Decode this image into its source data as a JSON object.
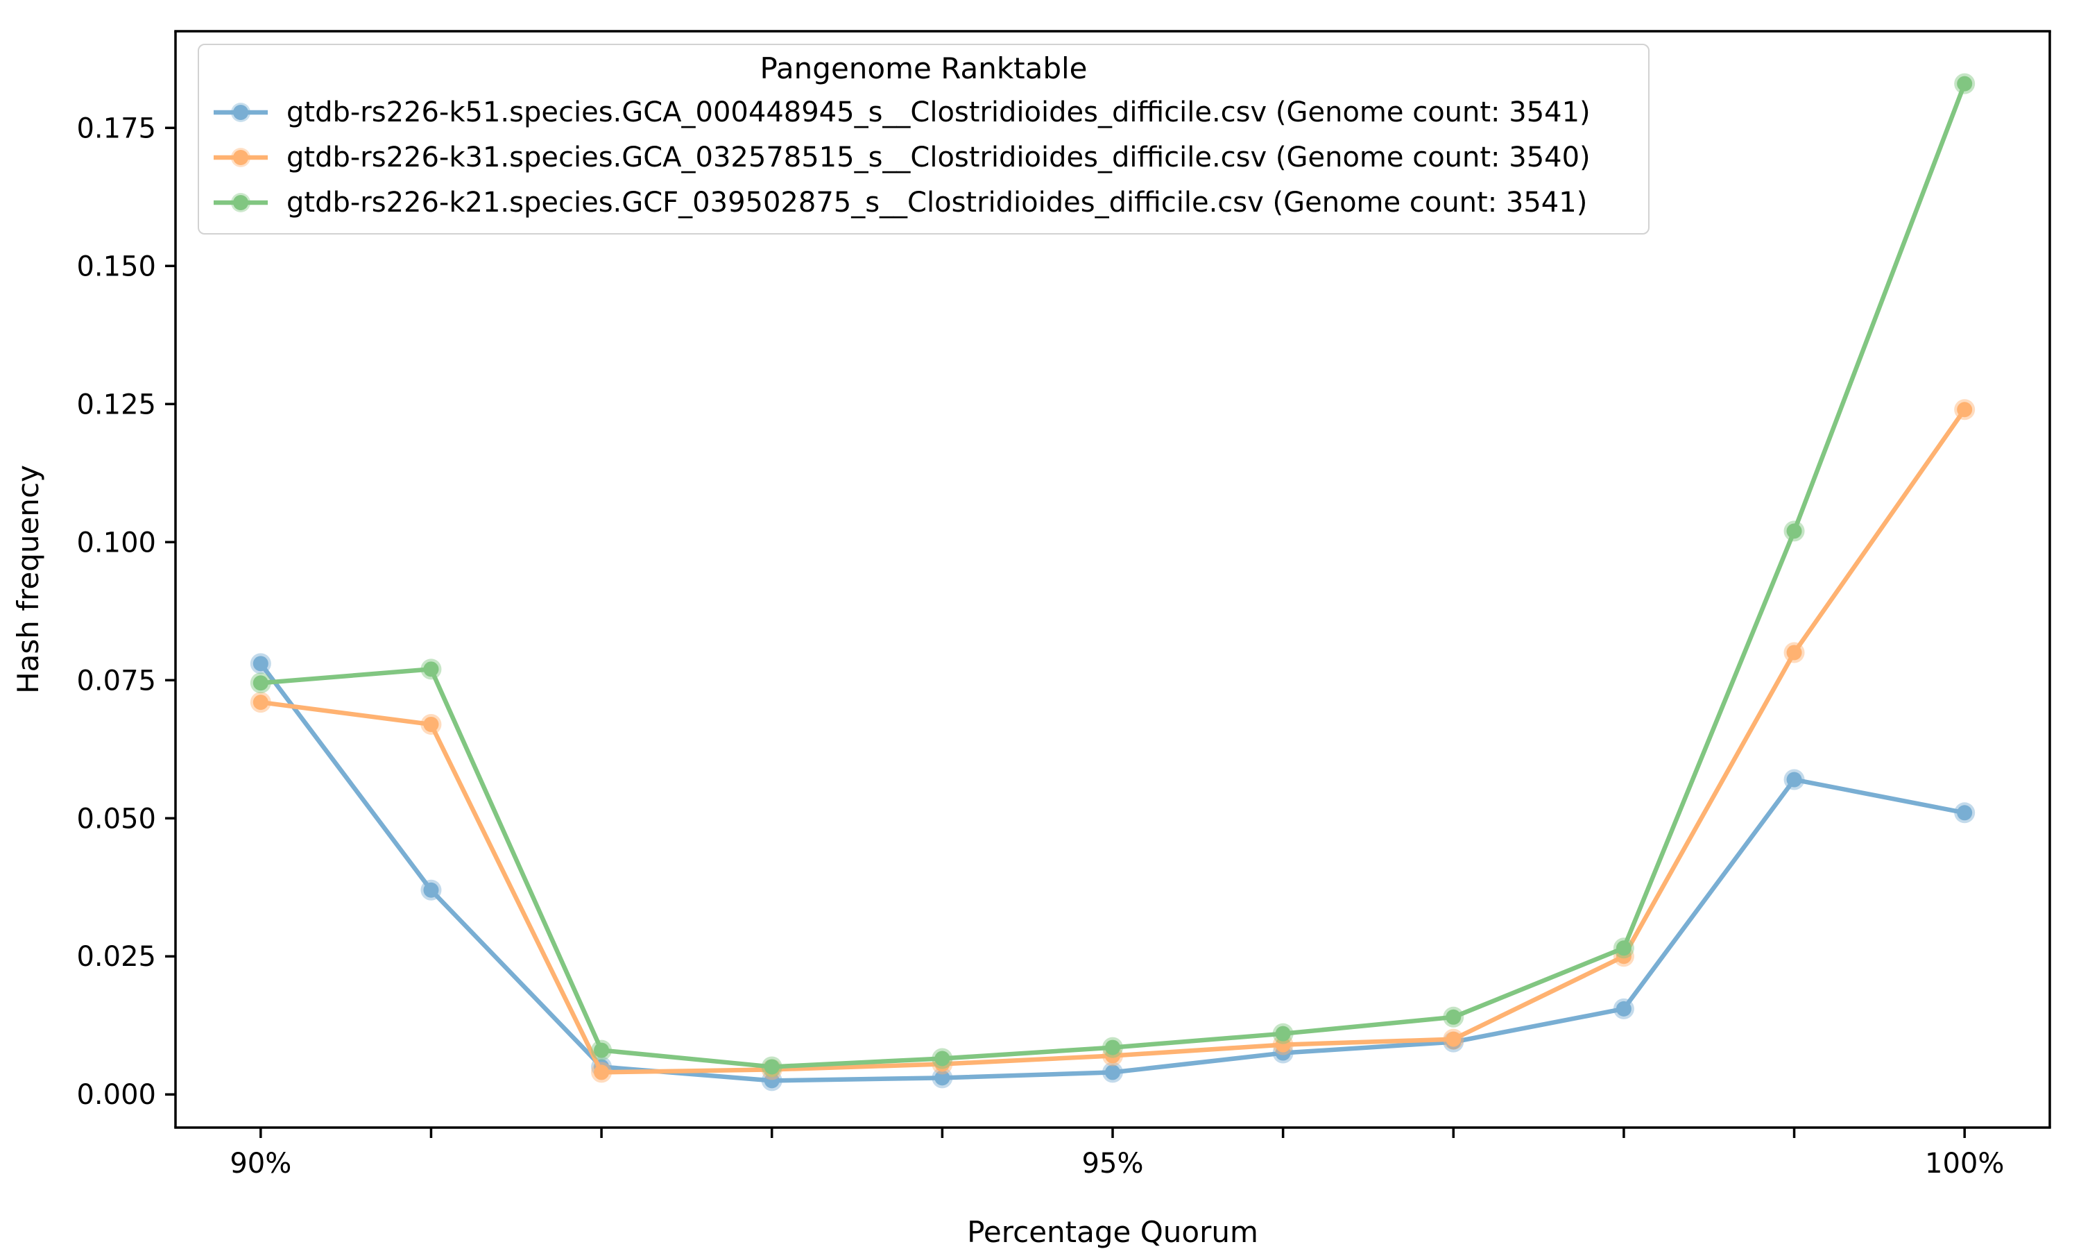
{
  "figure": {
    "x_axis_label": "Percentage Quorum",
    "y_axis_label": "Hash frequency",
    "x_tick_labels": [
      "90%",
      "95%",
      "100%"
    ],
    "y_tick_labels": [
      "0.000",
      "0.025",
      "0.050",
      "0.075",
      "0.100",
      "0.125",
      "0.150",
      "0.175"
    ]
  },
  "legend": {
    "title": "Pangenome Ranktable",
    "entries": [
      {
        "label": "gtdb-rs226-k51.species.GCA_000448945_s__Clostridioides_difficile.csv (Genome count: 3541)",
        "color": "#79aed3"
      },
      {
        "label": "gtdb-rs226-k31.species.GCA_032578515_s__Clostridioides_difficile.csv (Genome count: 3540)",
        "color": "#ffb271"
      },
      {
        "label": "gtdb-rs226-k21.species.GCF_039502875_s__Clostridioides_difficile.csv (Genome count: 3541)",
        "color": "#81c681"
      }
    ]
  },
  "chart_data": {
    "type": "line",
    "title": "Pangenome Ranktable",
    "xlabel": "Percentage Quorum",
    "ylabel": "Hash frequency",
    "x": [
      90,
      91,
      92,
      93,
      94,
      95,
      96,
      97,
      98,
      99,
      100
    ],
    "x_major_ticks": [
      90,
      95,
      100
    ],
    "x_major_tick_labels": [
      "90%",
      "95%",
      "100%"
    ],
    "y_ticks": [
      0.0,
      0.025,
      0.05,
      0.075,
      0.1,
      0.125,
      0.15,
      0.175
    ],
    "y_tick_labels": [
      "0.000",
      "0.025",
      "0.050",
      "0.075",
      "0.100",
      "0.125",
      "0.150",
      "0.175"
    ],
    "xlim": [
      89.5,
      100.5
    ],
    "ylim": [
      -0.006,
      0.1925
    ],
    "grid": false,
    "legend_position": "upper left",
    "series": [
      {
        "name": "gtdb-rs226-k51.species.GCA_000448945_s__Clostridioides_difficile.csv (Genome count: 3541)",
        "color": "#79aed3",
        "values": [
          0.078,
          0.037,
          0.005,
          0.0025,
          0.003,
          0.004,
          0.0075,
          0.0095,
          0.0155,
          0.057,
          0.051
        ]
      },
      {
        "name": "gtdb-rs226-k31.species.GCA_032578515_s__Clostridioides_difficile.csv (Genome count: 3540)",
        "color": "#ffb271",
        "values": [
          0.071,
          0.067,
          0.004,
          0.0045,
          0.0055,
          0.007,
          0.009,
          0.01,
          0.025,
          0.08,
          0.124
        ]
      },
      {
        "name": "gtdb-rs226-k21.species.GCF_039502875_s__Clostridioides_difficile.csv (Genome count: 3541)",
        "color": "#81c681",
        "values": [
          0.0745,
          0.077,
          0.008,
          0.005,
          0.0065,
          0.0085,
          0.011,
          0.014,
          0.0265,
          0.102,
          0.183
        ]
      }
    ]
  }
}
